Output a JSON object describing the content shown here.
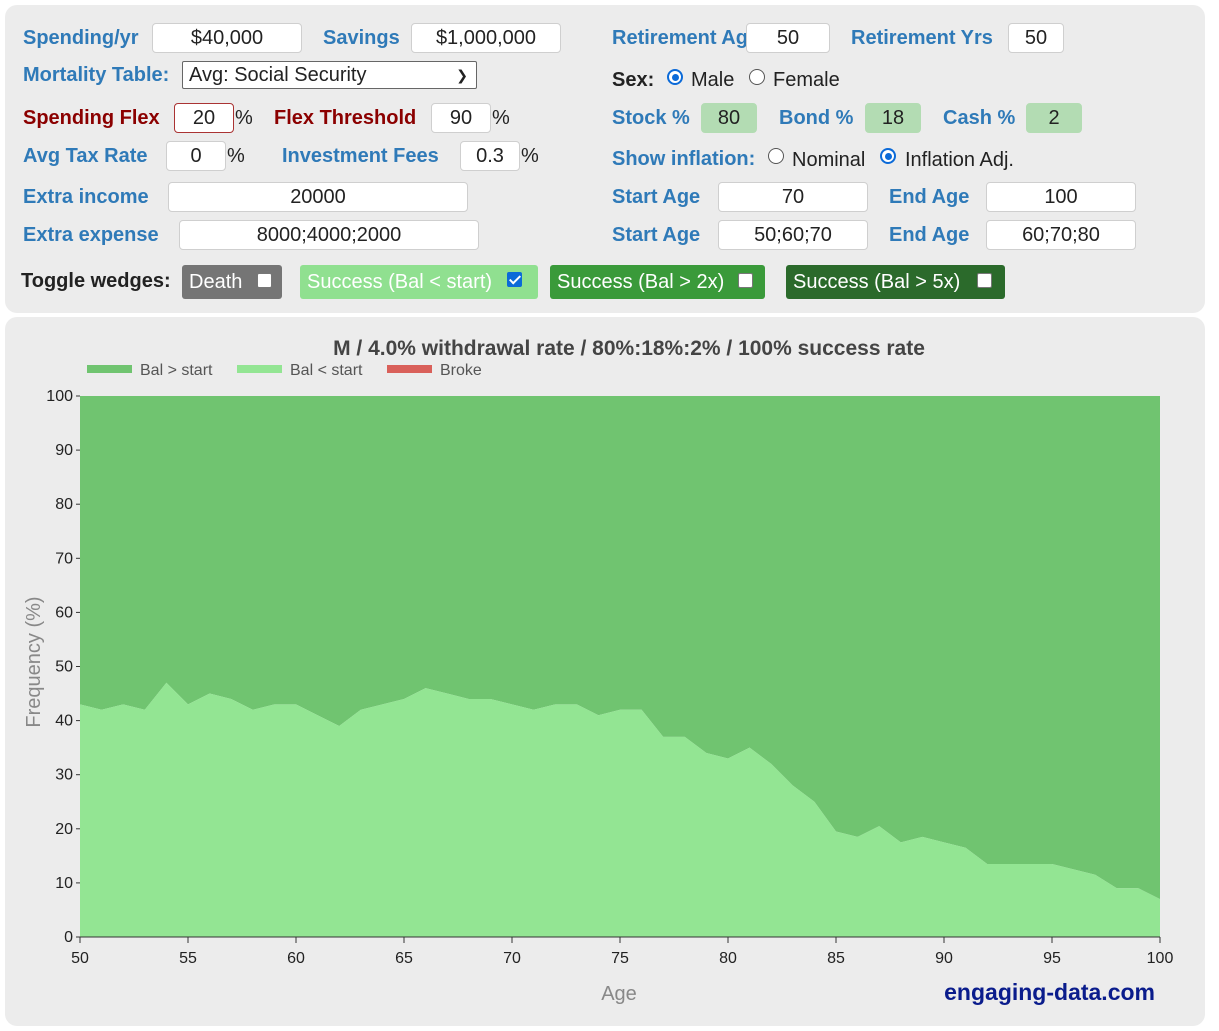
{
  "controls": {
    "spending": {
      "label": "Spending/yr",
      "value": "$40,000"
    },
    "savings": {
      "label": "Savings",
      "value": "$1,000,000"
    },
    "retirement_age": {
      "label": "Retirement Age",
      "value": "50"
    },
    "retirement_yrs": {
      "label": "Retirement Yrs",
      "value": "50"
    },
    "mortality": {
      "label": "Mortality Table:",
      "value": "Avg: Social Security"
    },
    "sex": {
      "label": "Sex:",
      "male": "Male",
      "female": "Female",
      "selected": "Male"
    },
    "spending_flex": {
      "label": "Spending Flex",
      "value": "20",
      "unit": "%"
    },
    "flex_threshold": {
      "label": "Flex Threshold",
      "value": "90",
      "unit": "%"
    },
    "stock": {
      "label": "Stock %",
      "value": "80"
    },
    "bond": {
      "label": "Bond %",
      "value": "18"
    },
    "cash": {
      "label": "Cash %",
      "value": "2"
    },
    "tax_rate": {
      "label": "Avg Tax Rate",
      "value": "0",
      "unit": "%"
    },
    "fees": {
      "label": "Investment Fees",
      "value": "0.3",
      "unit": "%"
    },
    "inflation": {
      "label": "Show inflation:",
      "nominal": "Nominal",
      "adjusted": "Inflation Adj.",
      "selected": "Inflation Adj."
    },
    "extra_income": {
      "label": "Extra income",
      "value": "20000",
      "start_label": "Start Age",
      "start": "70",
      "end_label": "End Age",
      "end": "100"
    },
    "extra_expense": {
      "label": "Extra expense",
      "value": "8000;4000;2000",
      "start_label": "Start Age",
      "start": "50;60;70",
      "end_label": "End Age",
      "end": "60;70;80"
    },
    "toggle_label": "Toggle wedges:",
    "wedges": [
      {
        "label": "Death",
        "checked": false,
        "color": "#757575"
      },
      {
        "label": "Success (Bal < start)",
        "checked": true,
        "color": "#90e090"
      },
      {
        "label": "Success (Bal > 2x)",
        "checked": false,
        "color": "#3a9a3a"
      },
      {
        "label": "Success (Bal > 5x)",
        "checked": false,
        "color": "#2b6a2b"
      }
    ]
  },
  "chart_data": {
    "type": "area",
    "title": "M / 4.0% withdrawal rate / 80%:18%:2% / 100% success rate",
    "xlabel": "Age",
    "ylabel": "Frequency (%)",
    "xlim": [
      50,
      100
    ],
    "ylim": [
      0,
      100
    ],
    "xticks": [
      50,
      55,
      60,
      65,
      70,
      75,
      80,
      85,
      90,
      95,
      100
    ],
    "yticks": [
      0,
      10,
      20,
      30,
      40,
      50,
      60,
      70,
      80,
      90,
      100
    ],
    "legend": [
      "Bal > start",
      "Bal < start",
      "Broke"
    ],
    "legend_position": "top-left",
    "colors": {
      "bal_above": "#70c470",
      "bal_below": "#93e593",
      "broke": "#d9605a"
    },
    "x": [
      50,
      51,
      52,
      53,
      54,
      55,
      56,
      57,
      58,
      59,
      60,
      61,
      62,
      63,
      64,
      65,
      66,
      67,
      68,
      69,
      70,
      71,
      72,
      73,
      74,
      75,
      76,
      77,
      78,
      79,
      80,
      81,
      82,
      83,
      84,
      85,
      86,
      87,
      88,
      89,
      90,
      91,
      92,
      93,
      94,
      95,
      96,
      97,
      98,
      99,
      100
    ],
    "series": [
      {
        "name": "Bal < start",
        "values": [
          43,
          42,
          43,
          42,
          47,
          43,
          45,
          44,
          42,
          43,
          43,
          41,
          39,
          42,
          43,
          44,
          46,
          45,
          44,
          44,
          43,
          42,
          43,
          43,
          41,
          42,
          42,
          37,
          37,
          34,
          33,
          35,
          32,
          28,
          25,
          19.5,
          18.5,
          20.5,
          17.5,
          18.5,
          17.5,
          16.5,
          13.5,
          13.5,
          13.5,
          13.5,
          12.5,
          11.5,
          9,
          9,
          7
        ]
      },
      {
        "name": "Bal > start",
        "values": [
          57,
          58,
          57,
          58,
          53,
          57,
          55,
          56,
          58,
          57,
          57,
          59,
          61,
          58,
          57,
          56,
          54,
          55,
          56,
          56,
          57,
          58,
          57,
          57,
          59,
          58,
          58,
          63,
          63,
          66,
          67,
          65,
          68,
          72,
          75,
          80.5,
          81.5,
          79.5,
          82.5,
          81.5,
          82.5,
          83.5,
          86.5,
          86.5,
          86.5,
          86.5,
          87.5,
          88.5,
          91,
          91,
          93
        ]
      },
      {
        "name": "Broke",
        "values": [
          0,
          0,
          0,
          0,
          0,
          0,
          0,
          0,
          0,
          0,
          0,
          0,
          0,
          0,
          0,
          0,
          0,
          0,
          0,
          0,
          0,
          0,
          0,
          0,
          0,
          0,
          0,
          0,
          0,
          0,
          0,
          0,
          0,
          0,
          0,
          0,
          0,
          0,
          0,
          0,
          0,
          0,
          0,
          0,
          0,
          0,
          0,
          0,
          0,
          0,
          0
        ]
      }
    ]
  },
  "watermark": "engaging-data.com"
}
